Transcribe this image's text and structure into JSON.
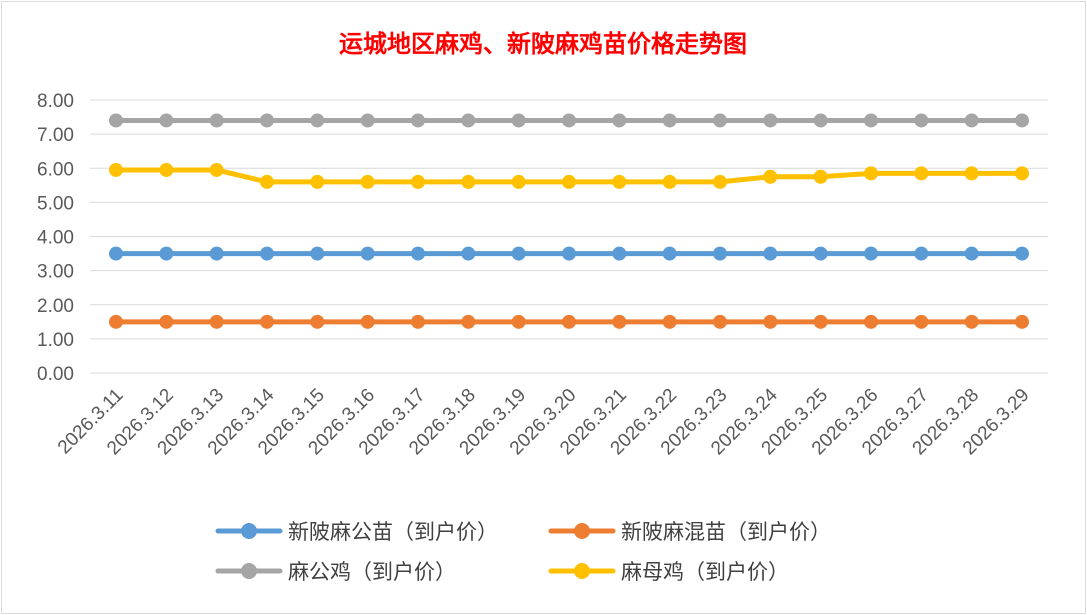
{
  "chart_data": {
    "type": "line",
    "title": "运城地区麻鸡、新陂麻鸡苗价格走势图",
    "xlabel": "",
    "ylabel": "",
    "ylim": [
      0,
      8
    ],
    "yticks": [
      "0.00",
      "1.00",
      "2.00",
      "3.00",
      "4.00",
      "5.00",
      "6.00",
      "7.00",
      "8.00"
    ],
    "grid": "horizontal",
    "legend_position": "bottom",
    "categories": [
      "2026.3.11",
      "2026.3.12",
      "2026.3.13",
      "2026.3.14",
      "2026.3.15",
      "2026.3.16",
      "2026.3.17",
      "2026.3.18",
      "2026.3.19",
      "2026.3.20",
      "2026.3.21",
      "2026.3.22",
      "2026.3.23",
      "2026.3.24",
      "2026.3.25",
      "2026.3.26",
      "2026.3.27",
      "2026.3.28",
      "2026.3.29"
    ],
    "series": [
      {
        "name": "新陂麻公苗（到户价）",
        "color": "#5b9bd5",
        "values": [
          3.5,
          3.5,
          3.5,
          3.5,
          3.5,
          3.5,
          3.5,
          3.5,
          3.5,
          3.5,
          3.5,
          3.5,
          3.5,
          3.5,
          3.5,
          3.5,
          3.5,
          3.5,
          3.5
        ]
      },
      {
        "name": "新陂麻混苗（到户价）",
        "color": "#ed7d31",
        "values": [
          1.5,
          1.5,
          1.5,
          1.5,
          1.5,
          1.5,
          1.5,
          1.5,
          1.5,
          1.5,
          1.5,
          1.5,
          1.5,
          1.5,
          1.5,
          1.5,
          1.5,
          1.5,
          1.5
        ]
      },
      {
        "name": "麻公鸡（到户价）",
        "color": "#a5a5a5",
        "values": [
          7.4,
          7.4,
          7.4,
          7.4,
          7.4,
          7.4,
          7.4,
          7.4,
          7.4,
          7.4,
          7.4,
          7.4,
          7.4,
          7.4,
          7.4,
          7.4,
          7.4,
          7.4,
          7.4
        ]
      },
      {
        "name": "麻母鸡（到户价）",
        "color": "#ffc000",
        "values": [
          5.95,
          5.95,
          5.95,
          5.6,
          5.6,
          5.6,
          5.6,
          5.6,
          5.6,
          5.6,
          5.6,
          5.6,
          5.6,
          5.75,
          5.75,
          5.85,
          5.85,
          5.85,
          5.85
        ]
      }
    ]
  }
}
